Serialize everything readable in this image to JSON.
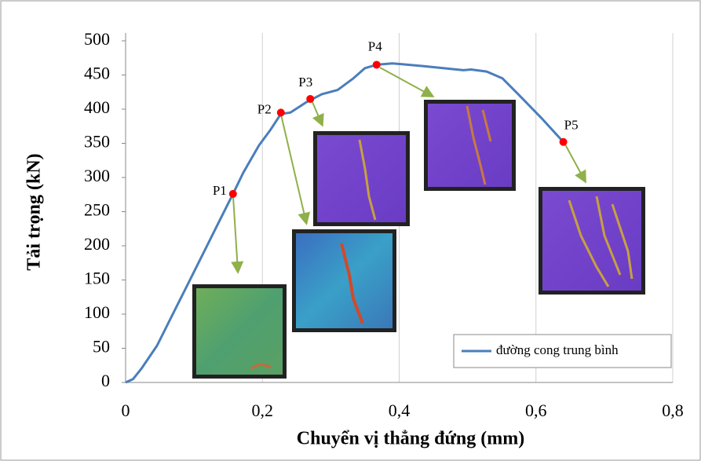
{
  "chart_data": {
    "type": "line",
    "x_label": "Chuyển vị thẳng đứng (mm)",
    "y_label": "Tải trọng (kN)",
    "xlim": [
      0,
      0.8
    ],
    "ylim": [
      0,
      500
    ],
    "xticks": [
      0,
      {
        "value": 0.2,
        "label": "0,2"
      },
      {
        "value": 0.4,
        "label": "0,4"
      },
      {
        "value": 0.6,
        "label": "0,6"
      },
      {
        "value": 0.8,
        "label": "0,8"
      }
    ],
    "yticks": [
      0,
      50,
      100,
      150,
      200,
      250,
      300,
      350,
      400,
      450,
      500
    ],
    "grid": "x",
    "legend": "lower right",
    "series": [
      {
        "name": "đường cong trung bình",
        "color": "#4a7ebb",
        "x": [
          0,
          0.011,
          0.023,
          0.046,
          0.069,
          0.092,
          0.115,
          0.138,
          0.157,
          0.172,
          0.195,
          0.212,
          0.227,
          0.241,
          0.264,
          0.287,
          0.31,
          0.333,
          0.35,
          0.367,
          0.39,
          0.436,
          0.494,
          0.505,
          0.528,
          0.551,
          0.574,
          0.608,
          0.64
        ],
        "values": [
          0,
          5,
          20,
          54,
          100,
          146,
          192,
          238,
          276,
          307,
          347,
          370,
          393,
          395,
          410,
          422,
          428,
          445,
          460,
          465,
          467,
          463,
          457,
          458,
          455,
          445,
          422,
          387,
          352
        ]
      }
    ],
    "points": {
      "color": "#ff0000",
      "labels": [
        "P1",
        "P2",
        "P3",
        "P4",
        "P5"
      ],
      "x": [
        0.157,
        0.227,
        0.27,
        0.367,
        0.64
      ],
      "values": [
        276,
        395,
        415,
        465,
        352
      ]
    }
  }
}
